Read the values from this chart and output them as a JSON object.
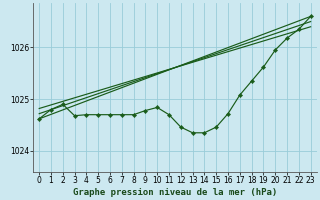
{
  "title": "Graphe pression niveau de la mer (hPa)",
  "bg_color": "#cce8f0",
  "grid_color": "#99ccd9",
  "line_color": "#1a5c1a",
  "xlim": [
    -0.5,
    23.5
  ],
  "ylim": [
    1023.6,
    1026.85
  ],
  "yticks": [
    1024,
    1025,
    1026
  ],
  "xticks": [
    0,
    1,
    2,
    3,
    4,
    5,
    6,
    7,
    8,
    9,
    10,
    11,
    12,
    13,
    14,
    15,
    16,
    17,
    18,
    19,
    20,
    21,
    22,
    23
  ],
  "main_x": [
    0,
    1,
    2,
    3,
    4,
    5,
    6,
    7,
    8,
    9,
    10,
    11,
    12,
    13,
    14,
    15,
    16,
    17,
    18,
    19,
    20,
    21,
    22,
    23
  ],
  "main_y": [
    1024.62,
    1024.8,
    1024.9,
    1024.68,
    1024.7,
    1024.7,
    1024.7,
    1024.7,
    1024.7,
    1024.78,
    1024.84,
    1024.7,
    1024.46,
    1024.35,
    1024.35,
    1024.46,
    1024.72,
    1025.08,
    1025.35,
    1025.62,
    1025.95,
    1026.18,
    1026.35,
    1026.6
  ],
  "line1": [
    [
      0,
      23
    ],
    [
      1024.62,
      1026.6
    ]
  ],
  "line2": [
    [
      0,
      23
    ],
    [
      1024.72,
      1026.5
    ]
  ],
  "line3": [
    [
      0,
      23
    ],
    [
      1024.82,
      1026.4
    ]
  ],
  "xlabel_fontsize": 6.5,
  "ylabel_fontsize": 6.5,
  "tick_fontsize": 5.5,
  "figsize": [
    3.2,
    2.0
  ],
  "dpi": 100
}
